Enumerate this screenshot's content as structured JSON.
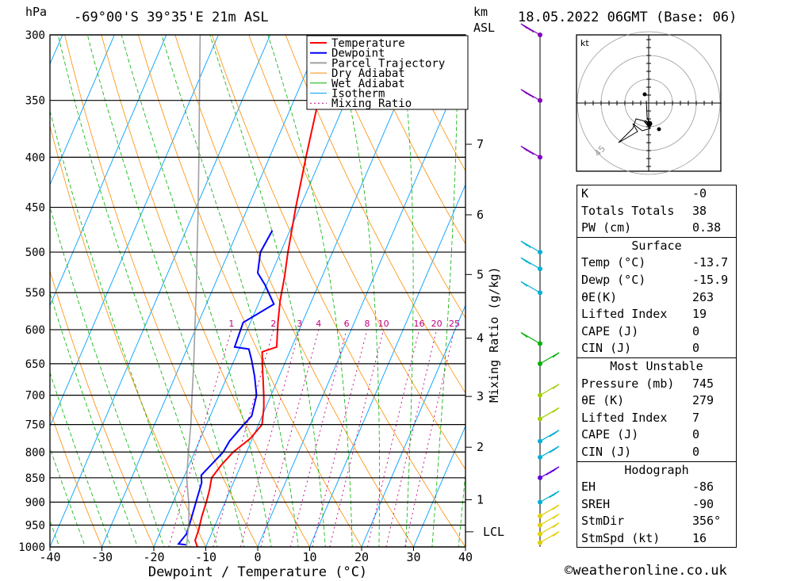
{
  "header": {
    "location": "-69°00'S 39°35'E 21m ASL",
    "datetime": "18.05.2022 06GMT (Base: 06)",
    "p_unit": "hPa",
    "km_unit": "km",
    "asl_label": "ASL"
  },
  "legend": [
    "Temperature",
    "Dewpoint",
    "Parcel Trajectory",
    "Dry Adiabat",
    "Wet Adiabat",
    "Isotherm",
    "Mixing Ratio"
  ],
  "colors": {
    "temperature": "#ff0000",
    "dewpoint": "#0000ff",
    "parcel": "#a0a0a0",
    "dry_adiabat": "#ff8c00",
    "wet_adiabat": "#00b000",
    "isotherm": "#00a0ff",
    "mixing_ratio": "#c00080"
  },
  "chart_data": {
    "type": "line",
    "xlabel": "Dewpoint / Temperature (°C)",
    "ylabel_right": "Mixing Ratio (g/kg)",
    "xlim": [
      -40,
      40
    ],
    "ylim": [
      1000,
      300
    ],
    "x_ticks": [
      -40,
      -30,
      -20,
      -10,
      0,
      10,
      20,
      30,
      40
    ],
    "pressure_levels": [
      300,
      350,
      400,
      450,
      500,
      550,
      600,
      650,
      700,
      750,
      800,
      850,
      900,
      950,
      1000
    ],
    "km_ticks": [
      1,
      2,
      3,
      4,
      5,
      6,
      7
    ],
    "lcl_label": "LCL",
    "mixing_ratio_labels": [
      "1",
      "2",
      "3",
      "4",
      "6",
      "8",
      "10",
      "16",
      "20",
      "25"
    ],
    "series": [
      {
        "name": "Temperature",
        "points": [
          [
            -11.6,
            1000
          ],
          [
            -12.6,
            985
          ],
          [
            -12.8,
            960
          ],
          [
            -13.3,
            930
          ],
          [
            -13.6,
            900
          ],
          [
            -14.0,
            875
          ],
          [
            -14.6,
            850
          ],
          [
            -13.8,
            825
          ],
          [
            -12.6,
            800
          ],
          [
            -10.4,
            775
          ],
          [
            -9.3,
            750
          ],
          [
            -10.4,
            720
          ],
          [
            -11.4,
            700
          ],
          [
            -12.8,
            675
          ],
          [
            -14.3,
            650
          ],
          [
            -15.3,
            632
          ],
          [
            -12.9,
            625
          ],
          [
            -14.7,
            590
          ],
          [
            -16.1,
            560
          ],
          [
            -17.2,
            530
          ],
          [
            -18.6,
            500
          ],
          [
            -20.8,
            450
          ],
          [
            -23.0,
            400
          ],
          [
            -25.3,
            350
          ],
          [
            -27.6,
            300
          ]
        ]
      },
      {
        "name": "Dewpoint",
        "points": [
          [
            -14.0,
            995
          ],
          [
            -15.5,
            993
          ],
          [
            -14.8,
            970
          ],
          [
            -15.1,
            940
          ],
          [
            -15.6,
            900
          ],
          [
            -16.1,
            860
          ],
          [
            -16.8,
            845
          ],
          [
            -15.8,
            825
          ],
          [
            -14.5,
            800
          ],
          [
            -14.2,
            780
          ],
          [
            -12.8,
            750
          ],
          [
            -12.0,
            735
          ],
          [
            -12.8,
            700
          ],
          [
            -14.7,
            670
          ],
          [
            -16.6,
            645
          ],
          [
            -18.1,
            628
          ],
          [
            -21.0,
            625
          ],
          [
            -21.4,
            590
          ],
          [
            -17.0,
            565
          ],
          [
            -20.3,
            540
          ],
          [
            -22.7,
            525
          ],
          [
            -23.9,
            500
          ],
          [
            -23.4,
            475
          ]
        ]
      },
      {
        "name": "Parcel Trajectory",
        "points": [
          [
            -13.7,
            1000
          ],
          [
            -14.4,
            975
          ],
          [
            -15.1,
            950
          ],
          [
            -16.0,
            925
          ],
          [
            -17.0,
            900
          ],
          [
            -18.2,
            875
          ],
          [
            -19.4,
            850
          ],
          [
            -21.2,
            800
          ],
          [
            -23.0,
            750
          ],
          [
            -25.2,
            700
          ],
          [
            -27.5,
            650
          ],
          [
            -30.1,
            600
          ],
          [
            -32.9,
            550
          ],
          [
            -36.1,
            500
          ],
          [
            -39.6,
            450
          ],
          [
            -43.6,
            400
          ],
          [
            -48.2,
            350
          ],
          [
            -53.5,
            300
          ]
        ]
      }
    ]
  },
  "hodograph": {
    "unit": "kt",
    "speed_label": "45"
  },
  "indices": {
    "general": [
      {
        "k": "K",
        "v": "-0"
      },
      {
        "k": "Totals Totals",
        "v": "38"
      },
      {
        "k": "PW (cm)",
        "v": "0.38"
      }
    ],
    "surface": {
      "title": "Surface",
      "rows": [
        {
          "k": "Temp (°C)",
          "v": "-13.7"
        },
        {
          "k": "Dewp (°C)",
          "v": "-15.9"
        },
        {
          "k": "θE(K)",
          "v": "263"
        },
        {
          "k": "Lifted Index",
          "v": "19"
        },
        {
          "k": "CAPE (J)",
          "v": "0"
        },
        {
          "k": "CIN (J)",
          "v": "0"
        }
      ]
    },
    "most_unstable": {
      "title": "Most Unstable",
      "rows": [
        {
          "k": "Pressure (mb)",
          "v": "745"
        },
        {
          "k": "θE (K)",
          "v": "279"
        },
        {
          "k": "Lifted Index",
          "v": "7"
        },
        {
          "k": "CAPE (J)",
          "v": "0"
        },
        {
          "k": "CIN (J)",
          "v": "0"
        }
      ]
    },
    "hodograph": {
      "title": "Hodograph",
      "rows": [
        {
          "k": "EH",
          "v": "-86"
        },
        {
          "k": "SREH",
          "v": "-90"
        },
        {
          "k": "StmDir",
          "v": "356°"
        },
        {
          "k": "StmSpd (kt)",
          "v": "16"
        }
      ]
    }
  },
  "credit": "©weatheronline.co.uk"
}
